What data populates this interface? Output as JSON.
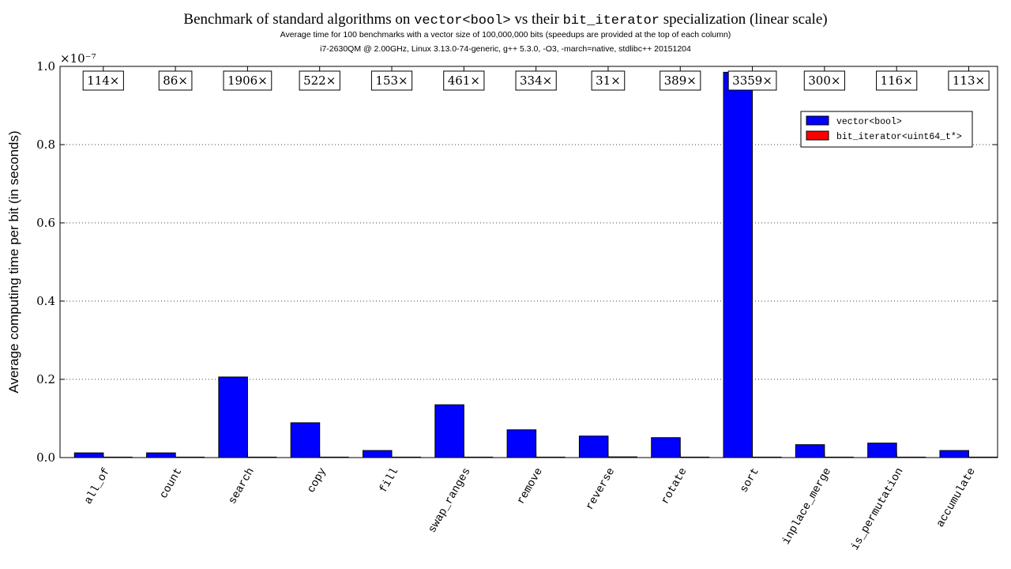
{
  "header": {
    "title_pre": "Benchmark of standard algorithms on ",
    "title_code1": "vector<bool>",
    "title_mid": " vs their ",
    "title_code2": "bit_iterator",
    "title_post": " specialization (linear scale)",
    "subtitle1": "Average time for 100 benchmarks with a vector size of 100,000,000 bits (speedups are provided at the top of each column)",
    "subtitle2": "i7-2630QM @ 2.00GHz, Linux 3.13.0-74-generic, g++ 5.3.0, -O3, -march=native, stdlibc++ 20151204"
  },
  "chart_data": {
    "type": "bar",
    "ylabel": "Average computing time per bit (in seconds)",
    "y_multiplier_label": "×10⁻⁷",
    "ylim": [
      0,
      1.0
    ],
    "yticks": [
      0.0,
      0.2,
      0.4,
      0.6,
      0.8,
      1.0
    ],
    "ytick_labels": [
      "0.0",
      "0.2",
      "0.4",
      "0.6",
      "0.8",
      "1.0"
    ],
    "grid": "y-dotted",
    "legend_position": "top-right",
    "categories": [
      "all_of",
      "count",
      "search",
      "copy",
      "fill",
      "swap_ranges",
      "remove",
      "reverse",
      "rotate",
      "sort",
      "inplace_merge",
      "is_permutation",
      "accumulate"
    ],
    "series": [
      {
        "name": "vector<bool>",
        "color": "#0000ff",
        "values": [
          0.012,
          0.012,
          0.206,
          0.089,
          0.018,
          0.135,
          0.071,
          0.055,
          0.051,
          0.985,
          0.033,
          0.037,
          0.018
        ]
      },
      {
        "name": "bit_iterator<uint64_t*>",
        "color": "#ff0000",
        "values": [
          0.0001,
          0.00014,
          0.00011,
          0.00017,
          0.00012,
          0.00029,
          0.00021,
          0.0018,
          0.00013,
          0.00029,
          0.00011,
          0.00032,
          0.00016
        ]
      }
    ],
    "speedup_labels": [
      "114×",
      "86×",
      "1906×",
      "522×",
      "153×",
      "461×",
      "334×",
      "31×",
      "389×",
      "3359×",
      "300×",
      "116×",
      "113×"
    ]
  }
}
